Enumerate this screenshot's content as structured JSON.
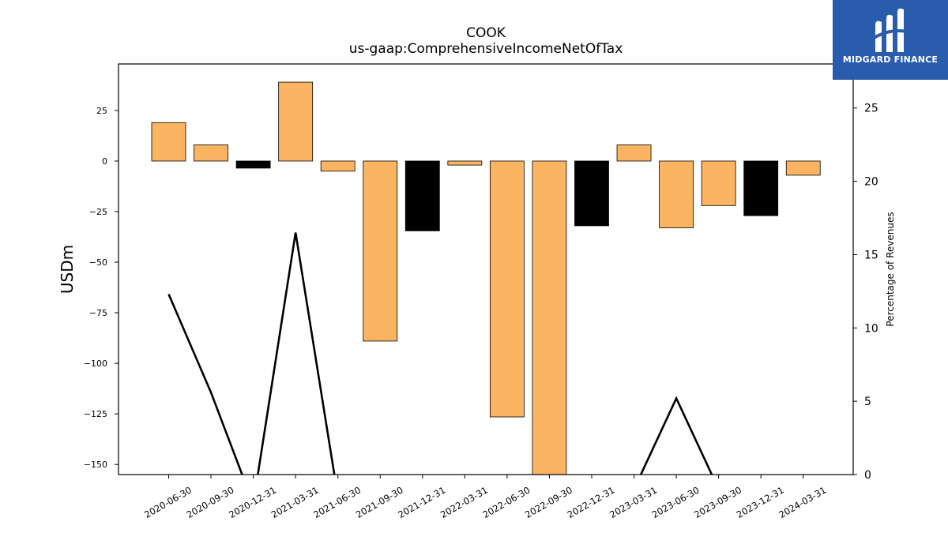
{
  "chart_data": {
    "type": "bar",
    "title": "COOK",
    "subtitle": "us-gaap:ComprehensiveIncomeNetOfTax",
    "ylabel": "USDm",
    "y2label": "Percentage of Revenues",
    "ylim": [
      -155,
      48
    ],
    "y2lim": [
      0,
      28
    ],
    "yticks": [
      25,
      0,
      -25,
      -50,
      -75,
      -100,
      -125,
      -150
    ],
    "y2ticks": [
      0,
      5,
      10,
      15,
      20,
      25
    ],
    "categories": [
      "2020-06-30",
      "2020-09-30",
      "2020-12-31",
      "2021-03-31",
      "2021-06-30",
      "2021-09-30",
      "2021-12-31",
      "2022-03-31",
      "2022-06-30",
      "2022-09-30",
      "2022-12-31",
      "2023-03-31",
      "2023-06-30",
      "2023-09-30",
      "2023-12-31",
      "2024-03-31"
    ],
    "values": [
      19,
      8,
      -3.5,
      39,
      -5,
      -89,
      -34.5,
      -2,
      -126.5,
      -160,
      -32,
      8,
      -33,
      -22,
      -27,
      -7
    ],
    "bar_colors": [
      "#fbb462",
      "#fbb462",
      "#000000",
      "#fbb462",
      "#fbb462",
      "#fbb462",
      "#000000",
      "#fbb462",
      "#fbb462",
      "#fbb462",
      "#000000",
      "#fbb462",
      "#fbb462",
      "#fbb462",
      "#000000",
      "#fbb462"
    ],
    "line_series": {
      "values": [
        12.3,
        5.6,
        -2.0,
        16.5,
        -1.5,
        null,
        null,
        null,
        null,
        null,
        null,
        -1.0,
        5.2,
        -1.0,
        null,
        null
      ],
      "color": "#000000"
    },
    "grid": false,
    "legend": "none"
  },
  "logo": {
    "text": "MIDGARD FINANCE"
  },
  "colors": {
    "positive_bar": "#fbb462",
    "q4_bar": "#000000",
    "logo_bg": "#2a5cae"
  }
}
